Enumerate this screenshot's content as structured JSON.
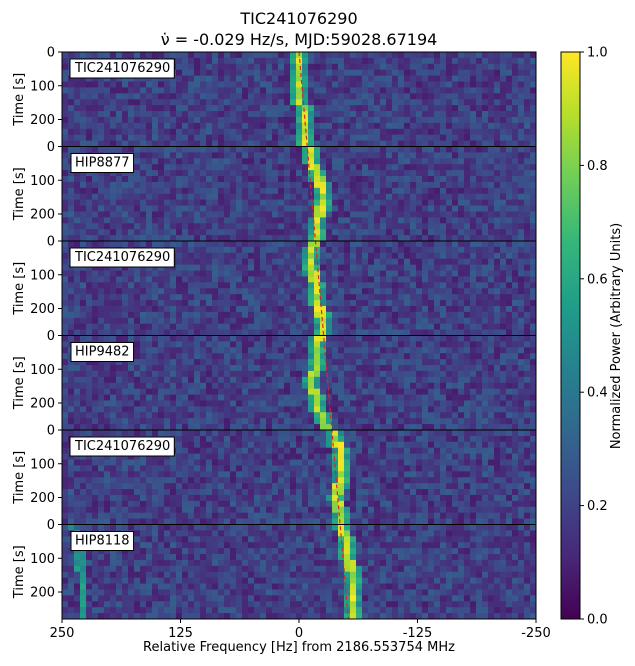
{
  "title": "TIC241076290",
  "subtitle": "ν̇ = -0.029 Hz/s, MJD:59028.67194",
  "colors": {
    "viridis": [
      "#440154",
      "#482878",
      "#3e4989",
      "#31688e",
      "#26828e",
      "#1f9e89",
      "#35b779",
      "#6ece58",
      "#b5de2b",
      "#fde725"
    ],
    "drift_line": "#d62728",
    "label_box": "#ffffff"
  },
  "chart_data": {
    "type": "heatmap",
    "xlabel": "Relative Frequency [Hz] from 2186.553754 MHz",
    "xlim": [
      250,
      -250
    ],
    "x_ticks": [
      "250",
      "125",
      "0",
      "-125",
      "-250"
    ],
    "ylabel": "Time [s]",
    "ylim": [
      0,
      280
    ],
    "y_ticks": [
      "0",
      "100",
      "200"
    ],
    "colorbar": {
      "label": "Normalized Power (Arbitrary Units)",
      "range": [
        0.0,
        1.0
      ],
      "ticks": [
        "0.0",
        "0.2",
        "0.4",
        "0.6",
        "0.8",
        "1.0"
      ]
    },
    "drift_line": {
      "rate_hz_per_s": -0.029,
      "start_hz": 0,
      "end_hz": -52,
      "style": "dashed"
    },
    "panels": [
      {
        "label": "TIC241076290",
        "signal_track": [
          [
            0,
            0
          ],
          [
            40,
            2
          ],
          [
            80,
            -2
          ],
          [
            140,
            0
          ],
          [
            170,
            -5
          ],
          [
            200,
            -7
          ],
          [
            240,
            -7
          ],
          [
            280,
            -6
          ]
        ],
        "extra_track": []
      },
      {
        "label": "HIP8877",
        "signal_track": [
          [
            0,
            -10
          ],
          [
            40,
            -12
          ],
          [
            80,
            -20
          ],
          [
            140,
            -25
          ],
          [
            200,
            -22
          ],
          [
            240,
            -20
          ],
          [
            280,
            -18
          ]
        ],
        "extra_track": []
      },
      {
        "label": "TIC241076290",
        "signal_track": [
          [
            0,
            -16
          ],
          [
            40,
            -14
          ],
          [
            80,
            -14
          ],
          [
            140,
            -18
          ],
          [
            200,
            -22
          ],
          [
            240,
            -24
          ],
          [
            280,
            -24
          ]
        ],
        "extra_track": []
      },
      {
        "label": "HIP9482",
        "signal_track": [
          [
            0,
            -22
          ],
          [
            40,
            -20
          ],
          [
            80,
            -18
          ],
          [
            140,
            -14
          ],
          [
            200,
            -18
          ],
          [
            240,
            -24
          ],
          [
            280,
            -30
          ]
        ],
        "extra_track": []
      },
      {
        "label": "TIC241076290",
        "signal_track": [
          [
            0,
            -38
          ],
          [
            40,
            -40
          ],
          [
            80,
            -44
          ],
          [
            140,
            -43
          ],
          [
            200,
            -40
          ],
          [
            240,
            -42
          ],
          [
            280,
            -44
          ]
        ],
        "extra_track": []
      },
      {
        "label": "HIP8118",
        "signal_track": [
          [
            0,
            -46
          ],
          [
            40,
            -48
          ],
          [
            80,
            -52
          ],
          [
            140,
            -55
          ],
          [
            200,
            -57
          ],
          [
            240,
            -57
          ],
          [
            280,
            -58
          ]
        ],
        "extra_track": [
          [
            0,
            240
          ],
          [
            60,
            232
          ],
          [
            140,
            230
          ],
          [
            200,
            230
          ],
          [
            280,
            230
          ]
        ]
      }
    ]
  }
}
